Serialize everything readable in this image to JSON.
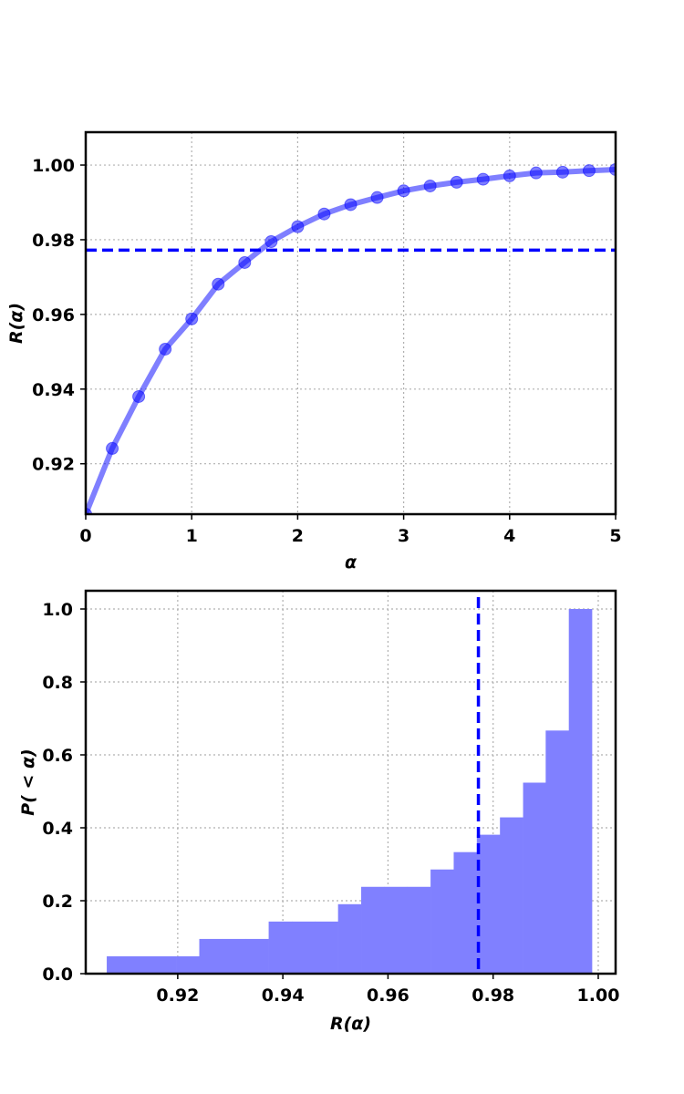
{
  "chart_data": [
    {
      "type": "line",
      "xlabel": "α",
      "ylabel": "R(α)",
      "xlim": [
        0,
        5
      ],
      "ylim": [
        0.9065,
        1.0088
      ],
      "xticks": [
        "0",
        "1",
        "2",
        "3",
        "4",
        "5"
      ],
      "xtick_values": [
        0,
        1,
        2,
        3,
        4,
        5
      ],
      "yticks": [
        "0.92",
        "0.94",
        "0.96",
        "0.98",
        "1.00"
      ],
      "ytick_values": [
        0.92,
        0.94,
        0.96,
        0.98,
        1.0
      ],
      "grid": true,
      "grid_style": "dotted",
      "series": [
        {
          "x": [
            0,
            0.25,
            0.5,
            0.75,
            1,
            1.25,
            1.5,
            1.75,
            2,
            2.25,
            2.5,
            2.75,
            3,
            3.25,
            3.5,
            3.75,
            4,
            4.25,
            4.5,
            4.75,
            5
          ],
          "values": [
            0.9065,
            0.9241,
            0.938,
            0.9507,
            0.9588,
            0.9681,
            0.9739,
            0.9795,
            0.9835,
            0.9869,
            0.9894,
            0.9913,
            0.9931,
            0.9944,
            0.9954,
            0.9962,
            0.9971,
            0.9979,
            0.9981,
            0.9985,
            0.9988
          ],
          "color": "#0000ff",
          "alpha": 0.5,
          "marker": "circle"
        }
      ],
      "hline": {
        "y": 0.9772,
        "color": "#0000ff",
        "style": "dashed"
      }
    },
    {
      "type": "histogram",
      "xlabel": "R(α)",
      "ylabel": "P( < α)",
      "xlim": [
        0.9025,
        1.0033
      ],
      "ylim": [
        0,
        1.05
      ],
      "xticks": [
        "0.92",
        "0.94",
        "0.96",
        "0.98",
        "1.00"
      ],
      "xtick_values": [
        0.92,
        0.94,
        0.96,
        0.98,
        1.0
      ],
      "yticks": [
        "0.0",
        "0.2",
        "0.4",
        "0.6",
        "0.8",
        "1.0"
      ],
      "ytick_values": [
        0.0,
        0.2,
        0.4,
        0.6,
        0.8,
        1.0
      ],
      "grid": true,
      "grid_style": "dotted",
      "cumulative": true,
      "bin_edges": [
        0.9065,
        0.9109,
        0.9153,
        0.9197,
        0.9241,
        0.9285,
        0.9329,
        0.9373,
        0.9417,
        0.9461,
        0.9505,
        0.9549,
        0.9593,
        0.9637,
        0.9681,
        0.9725,
        0.9769,
        0.9813,
        0.9857,
        0.99,
        0.9944,
        0.9988
      ],
      "values": [
        0.0476,
        0.0476,
        0.0476,
        0.0476,
        0.0952,
        0.0952,
        0.0952,
        0.1429,
        0.1429,
        0.1429,
        0.1905,
        0.2381,
        0.2381,
        0.2381,
        0.2857,
        0.3333,
        0.381,
        0.4286,
        0.5238,
        0.6667,
        1.0
      ],
      "color": "#8080ff",
      "vline": {
        "x": 0.9772,
        "color": "#0000ff",
        "style": "dashed"
      }
    }
  ]
}
